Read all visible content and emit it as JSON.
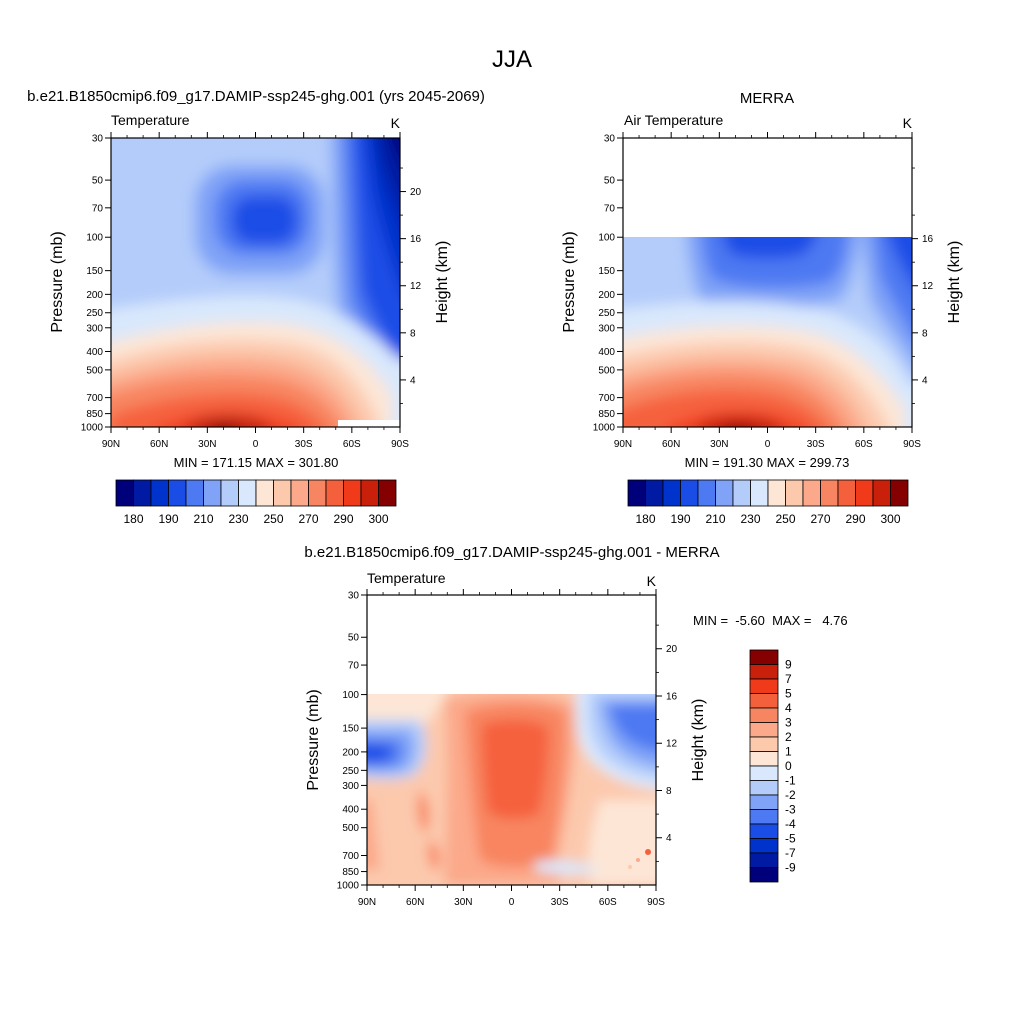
{
  "figure": {
    "title": "JJA"
  },
  "colors": {
    "abs_scale": [
      "#00007a",
      "#001aa3",
      "#0033cc",
      "#1a4de6",
      "#4d79f2",
      "#80a3f7",
      "#b3ccfa",
      "#d9e8fc",
      "#fde6d6",
      "#fcc9ad",
      "#fba98a",
      "#f88561",
      "#f5603c",
      "#f03a1a",
      "#c8200a",
      "#850000"
    ],
    "diff_scale": [
      "#00007a",
      "#001aa3",
      "#0033cc",
      "#1a4de6",
      "#4d79f2",
      "#80a3f7",
      "#b3ccfa",
      "#d9e8fc",
      "#fde6d6",
      "#fcc9ad",
      "#fba98a",
      "#f88561",
      "#f5603c",
      "#f03a1a",
      "#c8200a",
      "#850000"
    ]
  },
  "chart_data": [
    {
      "type": "heatmap",
      "panel": "model",
      "title": "b.e21.B1850cmip6.f09_g17.DAMIP-ssp245-ghg.001 (yrs 2045-2069)",
      "subtitle_left": "Temperature",
      "units": "K",
      "xlabel": "",
      "ylabel": "Pressure (mb)",
      "ylabel_right": "Height (km)",
      "x_ticks": [
        "90N",
        "60N",
        "30N",
        "0",
        "30S",
        "60S",
        "90S"
      ],
      "x_values": [
        90,
        60,
        30,
        0,
        -30,
        -60,
        -90
      ],
      "y_ticks": [
        "30",
        "50",
        "70",
        "100",
        "150",
        "200",
        "250",
        "300",
        "400",
        "500",
        "700",
        "850",
        "1000"
      ],
      "y_values": [
        30,
        50,
        70,
        100,
        150,
        200,
        250,
        300,
        400,
        500,
        700,
        850,
        1000
      ],
      "y_right_ticks": [
        "20",
        "16",
        "12",
        "8",
        "4"
      ],
      "y_right_values": [
        20,
        16,
        12,
        8,
        4
      ],
      "min_max_text": "MIN = 171.15  MAX = 301.80",
      "min": 171.15,
      "max": 301.8,
      "colorbar_labels": [
        "180",
        "190",
        "210",
        "230",
        "250",
        "270",
        "290",
        "300"
      ],
      "colorbar_orientation": "horizontal"
    },
    {
      "type": "heatmap",
      "panel": "obs",
      "title": "MERRA",
      "subtitle_left": "Air Temperature",
      "units": "K",
      "xlabel": "",
      "ylabel": "Pressure (mb)",
      "ylabel_right": "Height (km)",
      "x_ticks": [
        "90N",
        "60N",
        "30N",
        "0",
        "30S",
        "60S",
        "90S"
      ],
      "x_values": [
        90,
        60,
        30,
        0,
        -30,
        -60,
        -90
      ],
      "y_ticks": [
        "30",
        "50",
        "70",
        "100",
        "150",
        "200",
        "250",
        "300",
        "400",
        "500",
        "700",
        "850",
        "1000"
      ],
      "y_values": [
        30,
        50,
        70,
        100,
        150,
        200,
        250,
        300,
        400,
        500,
        700,
        850,
        1000
      ],
      "y_right_ticks": [
        "16",
        "12",
        "8",
        "4"
      ],
      "y_right_values": [
        16,
        12,
        8,
        4
      ],
      "data_top_pressure": 100,
      "min_max_text": "MIN = 191.30  MAX = 299.73",
      "min": 191.3,
      "max": 299.73,
      "colorbar_labels": [
        "180",
        "190",
        "210",
        "230",
        "250",
        "270",
        "290",
        "300"
      ],
      "colorbar_orientation": "horizontal"
    },
    {
      "type": "heatmap",
      "panel": "difference",
      "title": "b.e21.B1850cmip6.f09_g17.DAMIP-ssp245-ghg.001 - MERRA",
      "subtitle_left": "Temperature",
      "units": "K",
      "xlabel": "",
      "ylabel": "Pressure (mb)",
      "ylabel_right": "Height (km)",
      "x_ticks": [
        "90N",
        "60N",
        "30N",
        "0",
        "30S",
        "60S",
        "90S"
      ],
      "x_values": [
        90,
        60,
        30,
        0,
        -30,
        -60,
        -90
      ],
      "y_ticks": [
        "30",
        "50",
        "70",
        "100",
        "150",
        "200",
        "250",
        "300",
        "400",
        "500",
        "700",
        "850",
        "1000"
      ],
      "y_values": [
        30,
        50,
        70,
        100,
        150,
        200,
        250,
        300,
        400,
        500,
        700,
        850,
        1000
      ],
      "y_right_ticks": [
        "20",
        "16",
        "12",
        "8",
        "4"
      ],
      "y_right_values": [
        20,
        16,
        12,
        8,
        4
      ],
      "data_top_pressure": 100,
      "min_max_text": "MIN =  -5.60  MAX =   4.76",
      "min": -5.6,
      "max": 4.76,
      "colorbar_labels": [
        "9",
        "7",
        "5",
        "4",
        "3",
        "2",
        "1",
        "0",
        "-1",
        "-2",
        "-3",
        "-4",
        "-5",
        "-7",
        "-9"
      ],
      "colorbar_orientation": "vertical"
    }
  ]
}
